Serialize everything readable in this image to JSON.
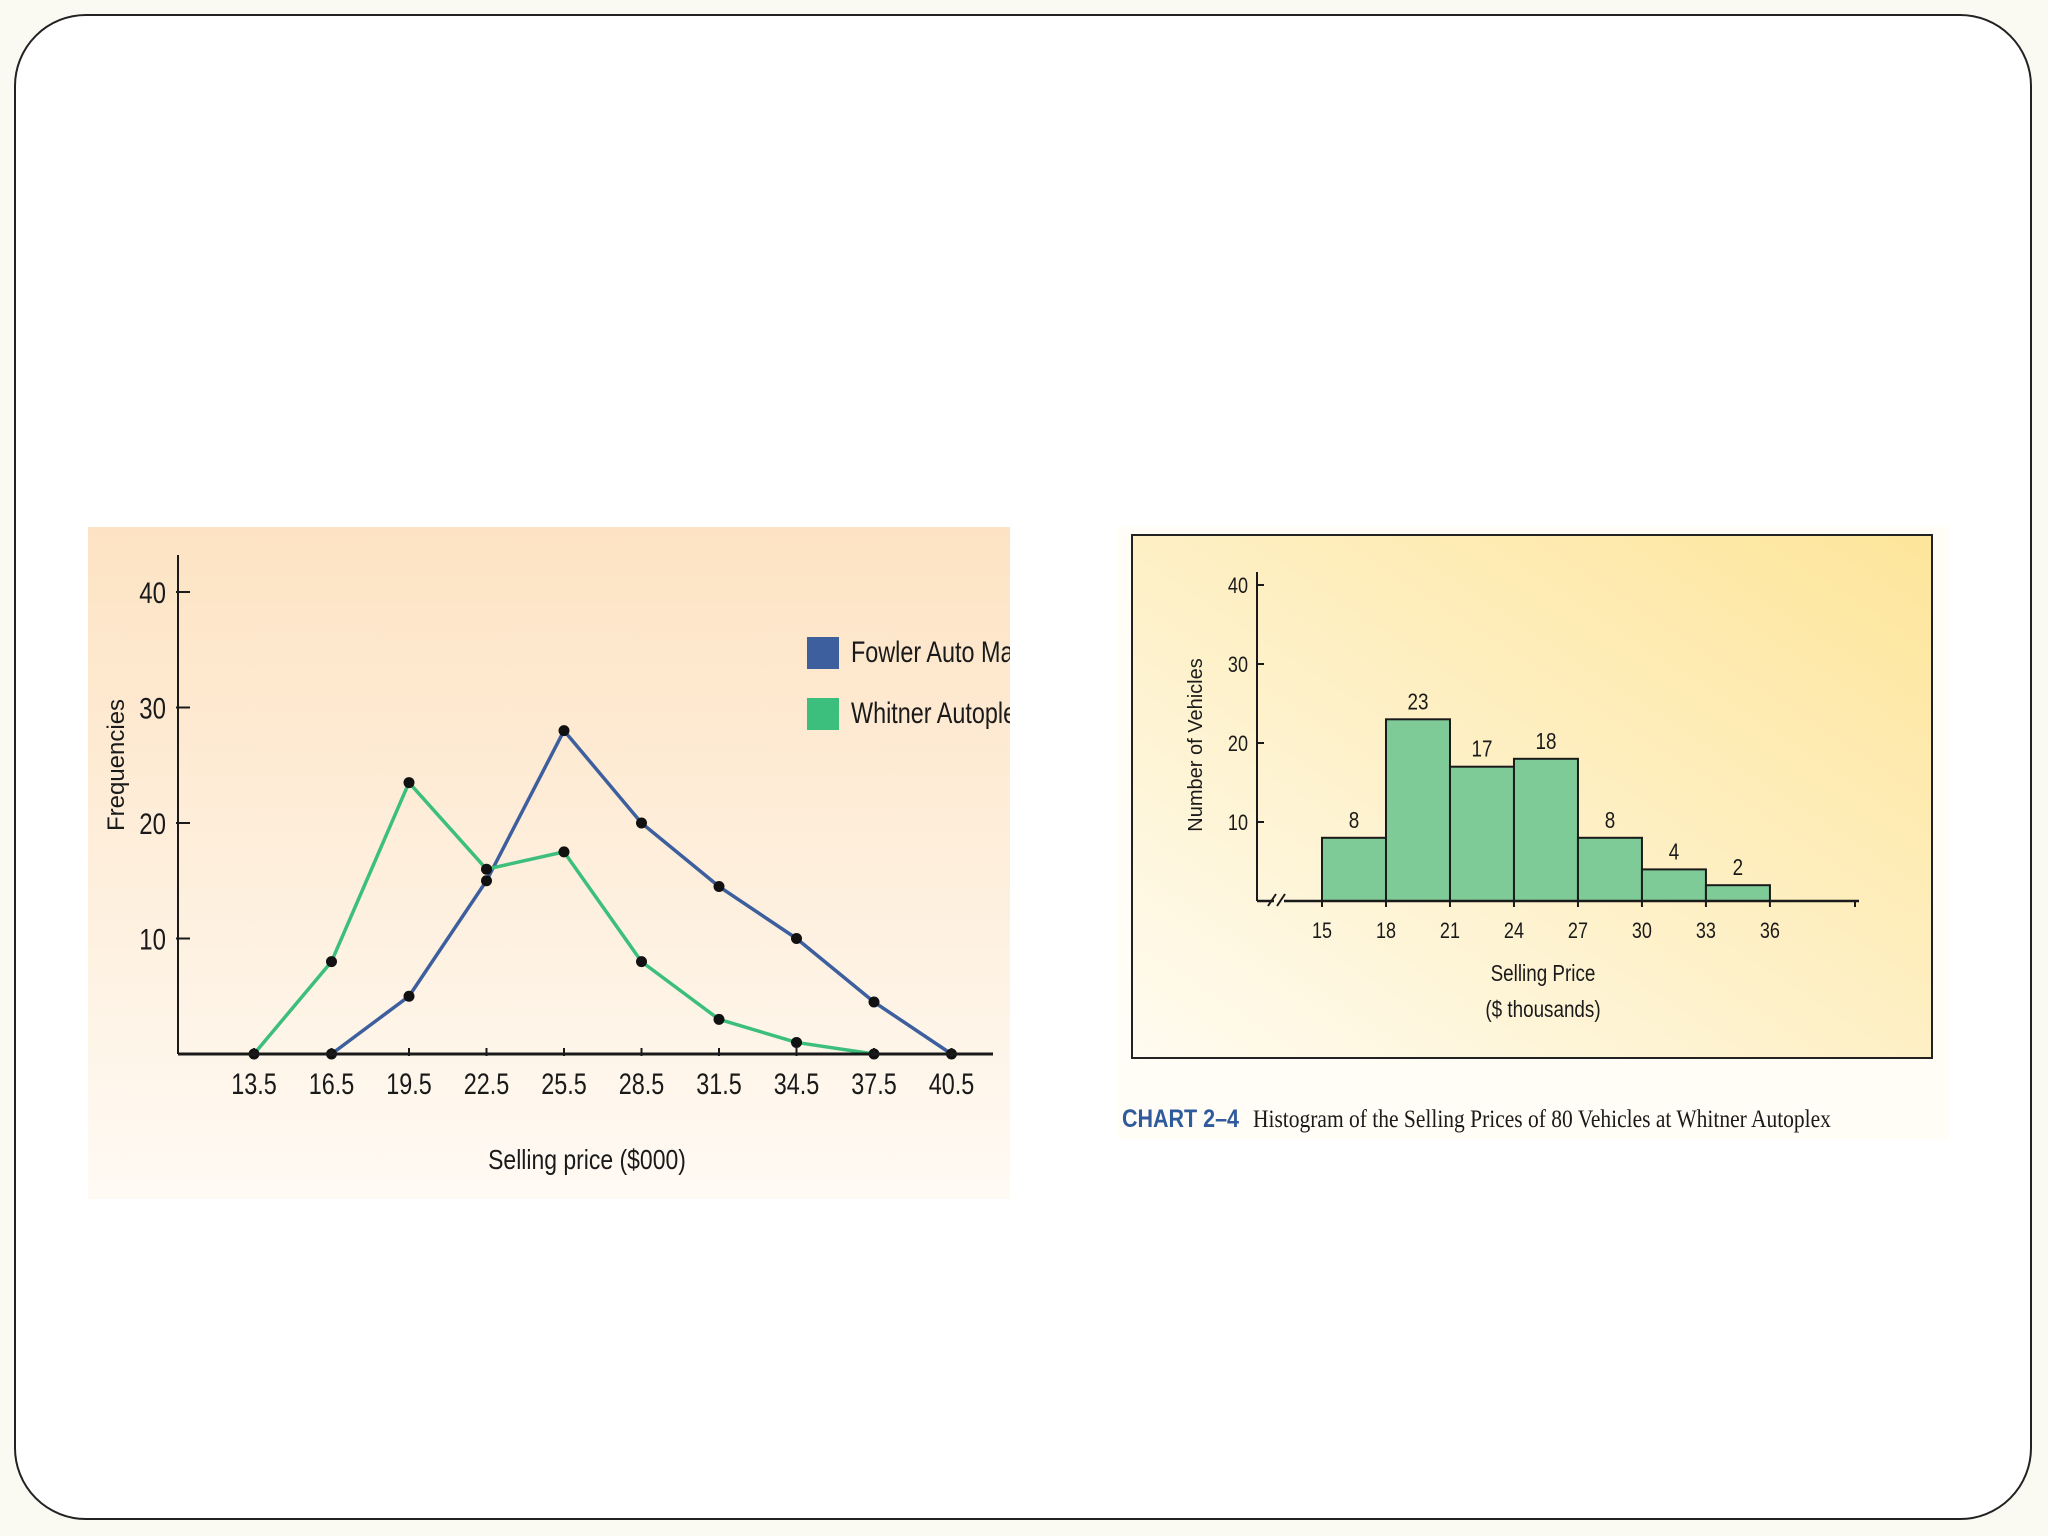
{
  "colors": {
    "fowler": "#3d5f9e",
    "whitner": "#3cbf7c",
    "bar_fill": "#7fcb98",
    "axis": "#1a1a1a",
    "caption_accent": "#2f5a9c"
  },
  "chart_data": [
    {
      "type": "line",
      "title": "",
      "xlabel": "Selling price ($000)",
      "ylabel": "Frequencies",
      "x": [
        13.5,
        16.5,
        19.5,
        22.5,
        25.5,
        28.5,
        31.5,
        34.5,
        37.5,
        40.5
      ],
      "x_tick_labels": [
        "13.5",
        "16.5",
        "19.5",
        "22.5",
        "25.5",
        "28.5",
        "31.5",
        "34.5",
        "37.5",
        "40.5"
      ],
      "ylim": [
        0,
        43
      ],
      "yticks": [
        10,
        20,
        30,
        40
      ],
      "legend_position": "top-right",
      "series": [
        {
          "name": "Fowler Auto Mall",
          "color_key": "fowler",
          "values": [
            null,
            0,
            5,
            15,
            28,
            20,
            14.5,
            10,
            4.5,
            0
          ]
        },
        {
          "name": "Whitner Autoplex",
          "color_key": "whitner",
          "values": [
            0,
            8,
            23.5,
            16,
            17.5,
            8,
            3,
            1,
            0,
            null
          ]
        }
      ]
    },
    {
      "type": "bar",
      "subtype": "histogram",
      "xlabel": "Selling Price",
      "xlabel_sub": "($ thousands)",
      "ylabel": "Number of Vehicles",
      "bin_edges": [
        15,
        18,
        21,
        24,
        27,
        30,
        33,
        36
      ],
      "x_tick_labels": [
        "15",
        "18",
        "21",
        "24",
        "27",
        "30",
        "33",
        "36"
      ],
      "values": [
        8,
        23,
        17,
        18,
        8,
        4,
        2
      ],
      "value_labels": [
        "8",
        "23",
        "17",
        "18",
        "8",
        "4",
        "2"
      ],
      "ylim": [
        0,
        40
      ],
      "yticks": [
        10,
        20,
        30,
        40
      ],
      "caption_label": "CHART 2–4",
      "caption_text": "Histogram of the Selling Prices of 80 Vehicles at Whitner Autoplex"
    }
  ]
}
